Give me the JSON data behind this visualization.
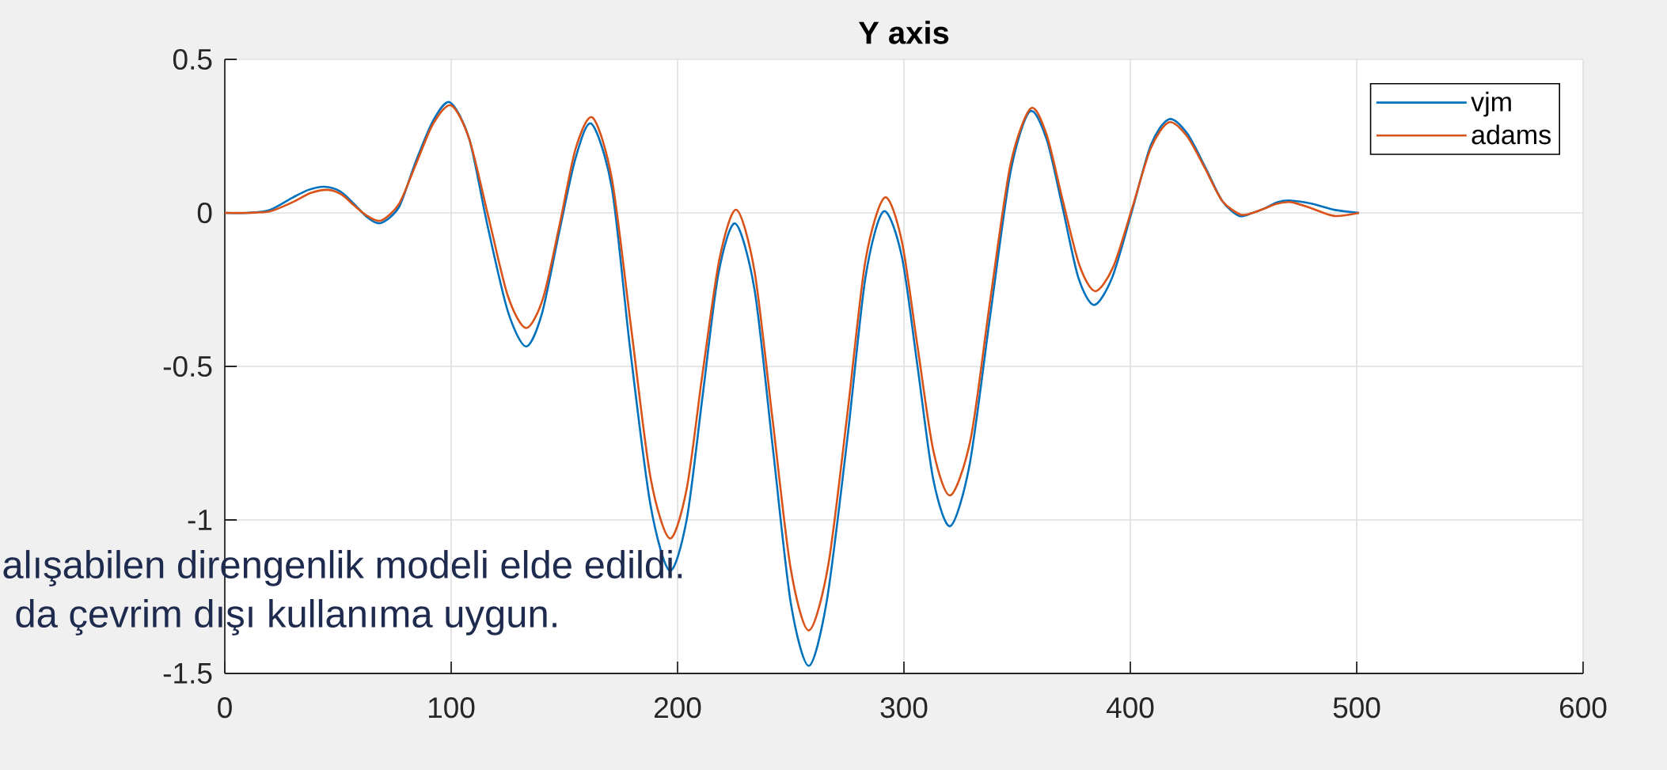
{
  "chart_data": {
    "type": "line",
    "title": "Y axis",
    "annotations": [
      "alışabilen direngenlik modeli elde edildi.",
      "da çevrim dışı kullanıma uygun."
    ],
    "series": [
      {
        "name": "vjm",
        "color": "#0072bd",
        "x": [
          0,
          10,
          20,
          30,
          37,
          44,
          51,
          57,
          63,
          69,
          77,
          84,
          92,
          99.5,
          108,
          116,
          125,
          133,
          140,
          147.5,
          155,
          162,
          171,
          179,
          188,
          196.5,
          204,
          211,
          218,
          225.5,
          234,
          242,
          250,
          258,
          266,
          275,
          283,
          291,
          299,
          306,
          313,
          320.5,
          329,
          338,
          347,
          355.5,
          363,
          370,
          377,
          384,
          392,
          400.5,
          409,
          417,
          425,
          433,
          440.5,
          448,
          454,
          459.5,
          465,
          471,
          480,
          490,
          501
        ],
        "values": [
          0,
          0,
          0.01,
          0.05,
          0.075,
          0.085,
          0.07,
          0.03,
          -0.015,
          -0.033,
          0.02,
          0.16,
          0.3,
          0.36,
          0.24,
          -0.04,
          -0.32,
          -0.435,
          -0.33,
          -0.07,
          0.18,
          0.29,
          0.08,
          -0.44,
          -0.95,
          -1.165,
          -1,
          -0.6,
          -0.2,
          -0.035,
          -0.25,
          -0.76,
          -1.27,
          -1.475,
          -1.26,
          -0.735,
          -0.21,
          0.005,
          -0.14,
          -0.5,
          -0.87,
          -1.02,
          -0.82,
          -0.34,
          0.13,
          0.33,
          0.24,
          0.02,
          -0.21,
          -0.3,
          -0.21,
          0,
          0.22,
          0.305,
          0.26,
          0.15,
          0.04,
          -0.01,
          0,
          0.015,
          0.035,
          0.04,
          0.03,
          0.01,
          0
        ]
      },
      {
        "name": "adams",
        "color": "#d95319",
        "x": [
          0,
          10,
          20,
          30,
          38,
          45.5,
          51.5,
          57,
          63,
          69,
          77,
          84.5,
          92,
          100,
          108,
          116.5,
          125,
          133,
          140.5,
          148,
          155,
          162.5,
          171,
          179.5,
          188,
          196.5,
          204,
          211,
          218.5,
          226,
          234,
          242,
          250,
          258,
          266.5,
          275,
          283,
          291.5,
          299,
          306,
          313,
          320.5,
          329.5,
          338,
          347,
          356,
          363,
          370,
          377.5,
          384.5,
          392.5,
          401,
          409,
          417,
          425,
          433,
          440.5,
          448.5,
          454,
          459.5,
          465,
          471,
          480,
          490,
          501
        ],
        "values": [
          0,
          0,
          0.005,
          0.035,
          0.065,
          0.075,
          0.06,
          0.025,
          -0.01,
          -0.025,
          0.03,
          0.16,
          0.29,
          0.35,
          0.24,
          -0.015,
          -0.27,
          -0.375,
          -0.28,
          -0.035,
          0.21,
          0.31,
          0.11,
          -0.375,
          -0.86,
          -1.06,
          -0.9,
          -0.525,
          -0.15,
          0.01,
          -0.19,
          -0.675,
          -1.16,
          -1.36,
          -1.15,
          -0.655,
          -0.155,
          0.05,
          -0.09,
          -0.435,
          -0.775,
          -0.92,
          -0.735,
          -0.29,
          0.155,
          0.34,
          0.255,
          0.045,
          -0.17,
          -0.255,
          -0.175,
          0.02,
          0.21,
          0.295,
          0.25,
          0.145,
          0.04,
          -0.005,
          0,
          0.015,
          0.03,
          0.035,
          0.015,
          -0.01,
          0
        ]
      }
    ],
    "xlim": [
      0,
      600
    ],
    "xticks": [
      0,
      100,
      200,
      300,
      400,
      500,
      600
    ],
    "ylim": [
      -1.5,
      0.5
    ],
    "yticks": [
      -1.5,
      -1,
      -0.5,
      0,
      0.5
    ],
    "grid": true,
    "legend": "top right",
    "line_style": "solid"
  }
}
